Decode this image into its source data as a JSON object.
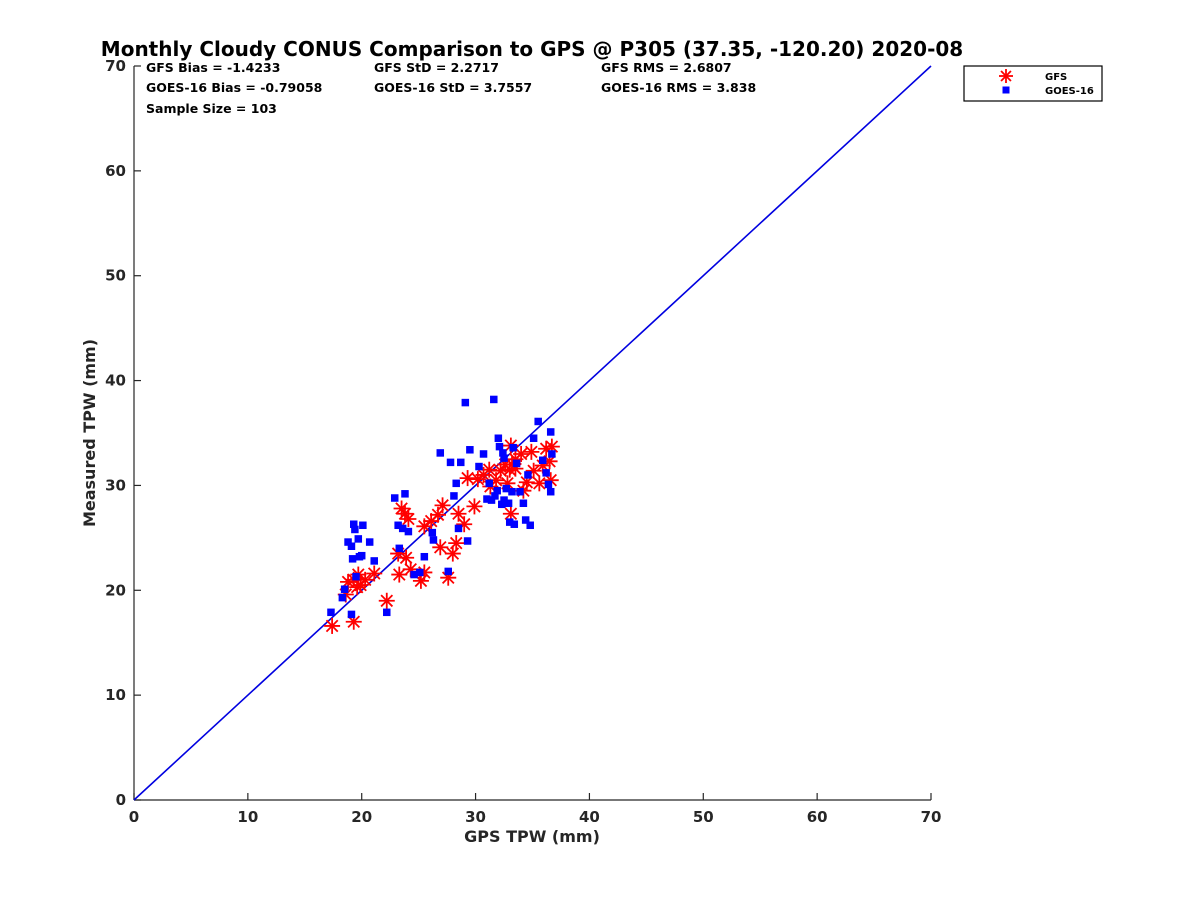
{
  "chart_data": {
    "type": "scatter",
    "title": "Monthly Cloudy CONUS Comparison to GPS @ P305 (37.35, -120.20) 2020-08",
    "xlabel": "GPS TPW (mm)",
    "ylabel": "Measured TPW (mm)",
    "xlim": [
      0,
      70
    ],
    "ylim": [
      0,
      70
    ],
    "xticks": [
      0,
      10,
      20,
      30,
      40,
      50,
      60,
      70
    ],
    "yticks": [
      0,
      10,
      20,
      30,
      40,
      50,
      60,
      70
    ],
    "grid": false,
    "legend_position": "top-right outside",
    "reference_line": {
      "from": [
        0,
        0
      ],
      "to": [
        70,
        70
      ],
      "color": "#0000e0"
    },
    "stats": [
      [
        "GFS Bias = -1.4233",
        "GFS StD = 2.2717",
        "GFS RMS = 2.6807"
      ],
      [
        "GOES-16 Bias = -0.79058",
        "GOES-16 StD = 3.7557",
        "GOES-16 RMS = 3.838"
      ],
      [
        "Sample Size = 103",
        "",
        ""
      ]
    ],
    "series": [
      {
        "name": "GFS",
        "marker": "asterisk",
        "color": "#ff0000",
        "points": [
          [
            17.4,
            16.6
          ],
          [
            19.3,
            17.0
          ],
          [
            18.6,
            19.6
          ],
          [
            18.8,
            20.8
          ],
          [
            19.3,
            21.0
          ],
          [
            19.7,
            21.5
          ],
          [
            19.9,
            20.5
          ],
          [
            20.3,
            21.0
          ],
          [
            21.1,
            21.6
          ],
          [
            19.6,
            20.3
          ],
          [
            22.2,
            19.0
          ],
          [
            23.2,
            23.5
          ],
          [
            23.3,
            21.5
          ],
          [
            23.5,
            27.8
          ],
          [
            23.8,
            27.3
          ],
          [
            24.1,
            26.8
          ],
          [
            23.9,
            23.1
          ],
          [
            24.3,
            22.0
          ],
          [
            25.2,
            20.9
          ],
          [
            25.5,
            21.7
          ],
          [
            25.5,
            26.1
          ],
          [
            26.1,
            26.6
          ],
          [
            26.7,
            27.2
          ],
          [
            26.9,
            24.1
          ],
          [
            27.1,
            28.1
          ],
          [
            27.6,
            21.2
          ],
          [
            28.0,
            23.5
          ],
          [
            28.3,
            24.5
          ],
          [
            28.5,
            27.3
          ],
          [
            29.0,
            26.3
          ],
          [
            29.3,
            30.7
          ],
          [
            29.9,
            28.0
          ],
          [
            30.2,
            30.6
          ],
          [
            30.7,
            31.0
          ],
          [
            31.3,
            29.9
          ],
          [
            31.8,
            30.5
          ],
          [
            32.2,
            31.4
          ],
          [
            32.6,
            32.0
          ],
          [
            33.0,
            31.5
          ],
          [
            33.1,
            33.8
          ],
          [
            33.2,
            32.0
          ],
          [
            33.5,
            32.5
          ],
          [
            34.0,
            33.0
          ],
          [
            34.2,
            29.5
          ],
          [
            34.5,
            30.3
          ],
          [
            34.9,
            33.2
          ],
          [
            35.1,
            31.4
          ],
          [
            35.6,
            30.2
          ],
          [
            35.9,
            31.9
          ],
          [
            36.2,
            33.5
          ],
          [
            36.5,
            32.3
          ],
          [
            36.6,
            30.5
          ],
          [
            36.7,
            33.7
          ],
          [
            33.1,
            27.3
          ],
          [
            33.5,
            31.6
          ],
          [
            32.8,
            30.2
          ],
          [
            31.2,
            31.5
          ]
        ]
      },
      {
        "name": "GOES-16",
        "marker": "square",
        "color": "#0000ff",
        "points": [
          [
            17.3,
            17.9
          ],
          [
            18.3,
            19.3
          ],
          [
            18.5,
            20.1
          ],
          [
            18.8,
            24.6
          ],
          [
            19.1,
            24.2
          ],
          [
            19.1,
            17.7
          ],
          [
            19.2,
            23.0
          ],
          [
            19.3,
            26.3
          ],
          [
            19.4,
            25.8
          ],
          [
            19.5,
            21.3
          ],
          [
            19.7,
            24.9
          ],
          [
            19.8,
            23.2
          ],
          [
            20.0,
            23.3
          ],
          [
            20.1,
            26.2
          ],
          [
            20.7,
            24.6
          ],
          [
            21.1,
            22.8
          ],
          [
            22.2,
            17.9
          ],
          [
            22.9,
            28.8
          ],
          [
            23.2,
            26.2
          ],
          [
            23.3,
            24.0
          ],
          [
            23.6,
            25.9
          ],
          [
            23.8,
            29.2
          ],
          [
            24.1,
            25.6
          ],
          [
            24.6,
            21.5
          ],
          [
            25.1,
            21.7
          ],
          [
            25.5,
            23.2
          ],
          [
            26.2,
            25.5
          ],
          [
            26.3,
            24.8
          ],
          [
            26.9,
            33.1
          ],
          [
            27.6,
            21.8
          ],
          [
            27.8,
            32.2
          ],
          [
            28.1,
            29.0
          ],
          [
            28.3,
            30.2
          ],
          [
            28.5,
            25.9
          ],
          [
            28.7,
            32.2
          ],
          [
            29.1,
            37.9
          ],
          [
            29.3,
            24.7
          ],
          [
            29.5,
            33.4
          ],
          [
            30.3,
            31.8
          ],
          [
            30.7,
            33.0
          ],
          [
            31.0,
            28.7
          ],
          [
            31.2,
            30.2
          ],
          [
            31.6,
            38.2
          ],
          [
            31.7,
            29.0
          ],
          [
            31.9,
            29.5
          ],
          [
            32.0,
            34.5
          ],
          [
            32.3,
            28.2
          ],
          [
            32.4,
            33.1
          ],
          [
            32.5,
            28.6
          ],
          [
            32.7,
            29.7
          ],
          [
            32.9,
            28.3
          ],
          [
            33.0,
            26.5
          ],
          [
            33.2,
            29.4
          ],
          [
            33.4,
            26.3
          ],
          [
            33.6,
            32.1
          ],
          [
            33.9,
            29.4
          ],
          [
            34.2,
            28.3
          ],
          [
            34.4,
            26.7
          ],
          [
            34.6,
            31.0
          ],
          [
            34.8,
            26.2
          ],
          [
            35.1,
            34.5
          ],
          [
            35.5,
            36.1
          ],
          [
            35.9,
            32.4
          ],
          [
            36.2,
            31.2
          ],
          [
            36.4,
            30.1
          ],
          [
            36.6,
            35.1
          ],
          [
            36.7,
            33.0
          ],
          [
            36.6,
            29.4
          ],
          [
            32.1,
            33.7
          ],
          [
            31.4,
            28.6
          ],
          [
            32.5,
            32.6
          ],
          [
            33.3,
            33.6
          ]
        ]
      }
    ]
  }
}
